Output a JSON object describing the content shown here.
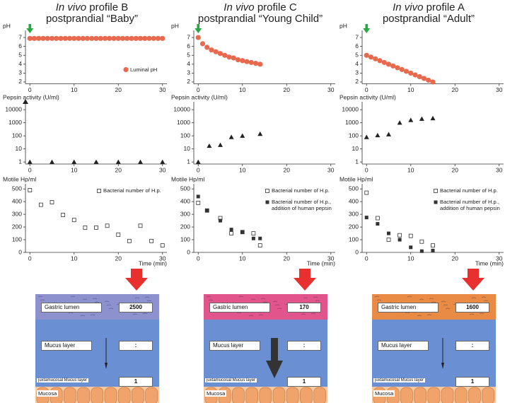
{
  "panels": [
    {
      "title_italic": "In vivo",
      "title": "profile B",
      "subtitle": "postprandial “Baby”",
      "diagram": {
        "lumen_label": "Gastric lumen",
        "lumen_value": 2500,
        "mucus_label": "Mucus layer",
        "mucus_value": ":",
        "jux_label": "juxtamucosal Mucus layer",
        "jux_value": 1,
        "mucosa_label": "Mucosa",
        "lumen_color": "#8d92cf"
      }
    },
    {
      "title_italic": "In vivo",
      "title": "profile C",
      "subtitle": "postprandial “Young Child”",
      "diagram": {
        "lumen_label": "Gastric lumen",
        "lumen_value": 170,
        "mucus_label": "Mucus layer",
        "mucus_value": ":",
        "jux_label": "juxtamucosal Mucus layer",
        "jux_value": 1,
        "mucosa_label": "Mucosa",
        "lumen_color": "#e2558c"
      }
    },
    {
      "title_italic": "In vivo",
      "title": "profile A",
      "subtitle": "postprandial “Adult”",
      "diagram": {
        "lumen_label": "Gastric lumen",
        "lumen_value": 1600,
        "mucus_label": "Mucus layer",
        "mucus_value": ":",
        "jux_label": "juxtamucosal Mucus layer",
        "jux_value": 1,
        "mucosa_label": "Mucosa",
        "lumen_color": "#e98b45"
      }
    }
  ],
  "chart_data": [
    {
      "type": "scatter",
      "ylabel": "pH",
      "x": [
        0,
        1,
        2,
        3,
        4,
        5,
        6,
        7,
        8,
        9,
        10,
        11,
        12,
        13,
        14,
        15,
        16,
        17,
        18,
        19,
        20,
        21,
        22,
        23,
        24,
        25,
        26,
        27,
        28,
        29,
        30
      ],
      "series": [
        {
          "name": "Luminal pH",
          "color": "#e8694e",
          "marker": "circle",
          "values": [
            6.9,
            6.9,
            6.9,
            6.9,
            6.9,
            6.9,
            6.9,
            6.9,
            6.9,
            6.9,
            6.9,
            6.9,
            6.9,
            6.9,
            6.9,
            6.9,
            6.9,
            6.9,
            6.9,
            6.9,
            6.9,
            6.9,
            6.9,
            6.9,
            6.9,
            6.9,
            6.9,
            6.9,
            6.9,
            6.9,
            6.9
          ]
        }
      ],
      "legend": "lower right",
      "xlim": [
        -1,
        31
      ],
      "ylim": [
        1.8,
        7.8
      ],
      "xticks": [
        0,
        10,
        20,
        30
      ],
      "yticks": [
        2,
        3,
        4,
        5,
        6,
        7
      ]
    },
    {
      "type": "scatter",
      "ylabel": "Pepsin activity (U/ml)",
      "log": true,
      "x": [
        0,
        5,
        10,
        15,
        20,
        25,
        30
      ],
      "series": [
        {
          "color": "#222222",
          "marker": "triangle",
          "values": [
            1,
            1,
            1,
            1,
            1,
            1,
            1
          ]
        }
      ],
      "xlim": [
        -1,
        31
      ],
      "ylim": [
        0.7,
        40000
      ],
      "xticks": [
        0,
        10,
        20,
        30
      ],
      "yticks": [
        1,
        10,
        100,
        1000,
        10000
      ]
    },
    {
      "type": "scatter",
      "ylabel": "Motile Hp/ml",
      "xlabel": "Time (min)",
      "x": [
        0,
        2.5,
        5,
        7.5,
        10,
        12.5,
        15,
        17.5,
        20,
        22.5,
        25,
        27.5,
        30
      ],
      "series": [
        {
          "name": "Bacterial number of H.p.",
          "color": "#333333",
          "marker": "square-open",
          "values": [
            490,
            375,
            395,
            295,
            255,
            195,
            195,
            210,
            140,
            90,
            210,
            90,
            55
          ]
        }
      ],
      "legend": "upper right",
      "xlim": [
        -1,
        31
      ],
      "ylim": [
        0,
        540
      ],
      "xticks": [
        0,
        10,
        20,
        30
      ],
      "yticks": [
        0,
        100,
        200,
        300,
        400,
        500
      ]
    },
    {
      "type": "scatter",
      "ylabel": "pH",
      "x": [
        0,
        1,
        2,
        3,
        4,
        5,
        6,
        7,
        8,
        9,
        10,
        11,
        12,
        13,
        14
      ],
      "series": [
        {
          "color": "#e8694e",
          "marker": "circle",
          "values": [
            7.0,
            6.3,
            5.9,
            5.6,
            5.4,
            5.2,
            5.0,
            4.8,
            4.7,
            4.5,
            4.4,
            4.3,
            4.2,
            4.1,
            4.0
          ]
        }
      ],
      "xlim": [
        -1,
        31
      ],
      "ylim": [
        1.8,
        7.8
      ],
      "xticks": [
        0,
        10,
        20,
        30
      ],
      "yticks": [
        2,
        3,
        4,
        5,
        6,
        7
      ]
    },
    {
      "type": "scatter",
      "ylabel": "Pepsin activity (U/ml)",
      "log": true,
      "x": [
        0,
        2.5,
        5,
        7.5,
        10,
        14
      ],
      "series": [
        {
          "color": "#222222",
          "marker": "triangle",
          "values": [
            1,
            17,
            20,
            80,
            100,
            140
          ]
        }
      ],
      "xlim": [
        -1,
        31
      ],
      "ylim": [
        0.7,
        40000
      ],
      "xticks": [
        0,
        10,
        20,
        30
      ],
      "yticks": [
        1,
        10,
        100,
        1000,
        10000
      ]
    },
    {
      "type": "scatter",
      "ylabel": "Motile Hp/ml",
      "xlabel": "Time (min)",
      "x": [
        0,
        2,
        5,
        7.5,
        10,
        12.5,
        14
      ],
      "series": [
        {
          "name": "Bacterial number of H.p.",
          "color": "#333333",
          "marker": "square-open",
          "values": [
            390,
            330,
            270,
            150,
            160,
            150,
            55
          ]
        },
        {
          "name": "Bacterial number of H.p., addition of human pepsin",
          "color": "#333333",
          "marker": "square",
          "values": [
            440,
            330,
            250,
            180,
            160,
            110,
            110
          ]
        }
      ],
      "legend": "upper right",
      "xlim": [
        -1,
        31
      ],
      "ylim": [
        0,
        540
      ],
      "xticks": [
        0,
        10,
        20,
        30
      ],
      "yticks": [
        0,
        100,
        200,
        300,
        400,
        500
      ]
    },
    {
      "type": "scatter",
      "ylabel": "pH",
      "x": [
        0,
        1,
        2,
        3,
        4,
        5,
        6,
        7,
        8,
        9,
        10,
        11,
        12,
        13,
        14,
        15
      ],
      "series": [
        {
          "color": "#e8694e",
          "marker": "circle",
          "values": [
            5.0,
            4.8,
            4.6,
            4.4,
            4.2,
            4.0,
            3.8,
            3.6,
            3.4,
            3.2,
            3.0,
            2.8,
            2.6,
            2.4,
            2.2,
            2.0
          ]
        }
      ],
      "xlim": [
        -1,
        31
      ],
      "ylim": [
        1.8,
        7.8
      ],
      "xticks": [
        0,
        10,
        20,
        30
      ],
      "yticks": [
        2,
        3,
        4,
        5,
        6,
        7
      ]
    },
    {
      "type": "scatter",
      "ylabel": "Pepsin activity (U/ml)",
      "log": true,
      "x": [
        0,
        2.5,
        5,
        7.5,
        10,
        12.5,
        15
      ],
      "series": [
        {
          "color": "#222222",
          "marker": "triangle",
          "values": [
            80,
            110,
            130,
            1000,
            1600,
            2000,
            2200
          ]
        }
      ],
      "xlim": [
        -1,
        31
      ],
      "ylim": [
        0.7,
        40000
      ],
      "xticks": [
        0,
        10,
        20,
        30
      ],
      "yticks": [
        1,
        10,
        100,
        1000,
        10000
      ]
    },
    {
      "type": "scatter",
      "ylabel": "Motile Hp/ml",
      "xlabel": "Time (min)",
      "x": [
        0,
        2.5,
        5,
        7.5,
        10,
        12.5,
        15
      ],
      "series": [
        {
          "name": "Bacterial number of H.p.",
          "color": "#333333",
          "marker": "square-open",
          "values": [
            470,
            270,
            100,
            135,
            130,
            85,
            55
          ]
        },
        {
          "name": "Bacterial number of H.p., addition of human pepsin",
          "color": "#333333",
          "marker": "square",
          "values": [
            275,
            225,
            150,
            100,
            40,
            10,
            15
          ]
        }
      ],
      "legend": "upper right",
      "xlim": [
        -1,
        31
      ],
      "ylim": [
        0,
        540
      ],
      "xticks": [
        0,
        10,
        20,
        30
      ],
      "yticks": [
        0,
        100,
        200,
        300,
        400,
        500
      ]
    }
  ]
}
